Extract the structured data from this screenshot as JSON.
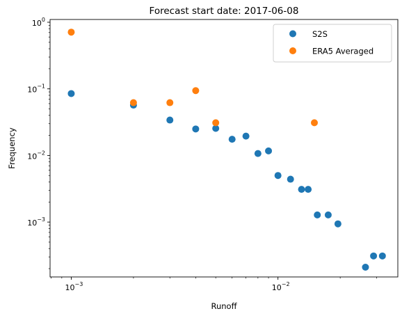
{
  "chart_data": {
    "type": "scatter",
    "title": "Forecast start date: 2017-06-08",
    "xlabel": "Runoff",
    "ylabel": "Frequency",
    "x_scale": "log",
    "y_scale": "log",
    "xlim": [
      0.00079,
      0.038
    ],
    "ylim": [
      0.00015,
      1.1
    ],
    "x_ticks": [
      {
        "value": 0.001,
        "base": "10",
        "exp": "−3"
      },
      {
        "value": 0.01,
        "base": "10",
        "exp": "−2"
      }
    ],
    "y_ticks": [
      {
        "value": 0.001,
        "base": "10",
        "exp": "−3"
      },
      {
        "value": 0.01,
        "base": "10",
        "exp": "−2"
      },
      {
        "value": 0.1,
        "base": "10",
        "exp": "−1"
      },
      {
        "value": 1,
        "base": "10",
        "exp": "0"
      }
    ],
    "grid": false,
    "legend_position": "top-right",
    "series": [
      {
        "name": "S2S",
        "color": "#1f77b4",
        "points": [
          [
            0.001,
            0.085
          ],
          [
            0.002,
            0.057
          ],
          [
            0.003,
            0.034
          ],
          [
            0.004,
            0.025
          ],
          [
            0.005,
            0.0255
          ],
          [
            0.006,
            0.0175
          ],
          [
            0.007,
            0.0195
          ],
          [
            0.008,
            0.0107
          ],
          [
            0.009,
            0.0117
          ],
          [
            0.01,
            0.005
          ],
          [
            0.0115,
            0.0044
          ],
          [
            0.013,
            0.0031
          ],
          [
            0.014,
            0.0031
          ],
          [
            0.0155,
            0.00128
          ],
          [
            0.0175,
            0.00128
          ],
          [
            0.0195,
            0.00094
          ],
          [
            0.0265,
            0.00021
          ],
          [
            0.029,
            0.00031
          ],
          [
            0.032,
            0.00031
          ]
        ]
      },
      {
        "name": "ERA5 Averaged",
        "color": "#ff7f0e",
        "points": [
          [
            0.001,
            0.71
          ],
          [
            0.002,
            0.062
          ],
          [
            0.003,
            0.062
          ],
          [
            0.004,
            0.094
          ],
          [
            0.005,
            0.031
          ],
          [
            0.015,
            0.031
          ]
        ]
      }
    ]
  }
}
